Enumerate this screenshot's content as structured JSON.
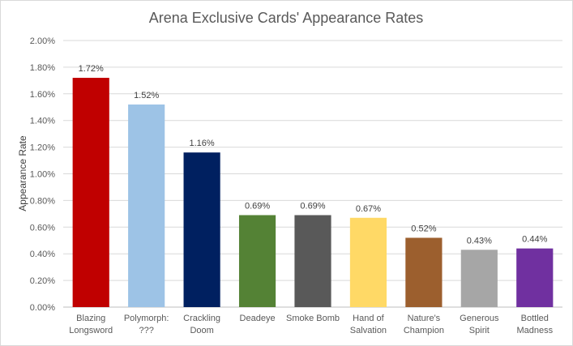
{
  "chart_data": {
    "type": "bar",
    "title": "Arena Exclusive Cards' Appearance Rates",
    "xlabel": "",
    "ylabel": "Appearance Rate",
    "ylim": [
      0,
      2.0
    ],
    "ytick_step": 0.2,
    "ytick_format": "percent_2dp",
    "grid": true,
    "legend": "none",
    "categories": [
      [
        "Blazing",
        "Longsword"
      ],
      [
        "Polymorph:",
        "???"
      ],
      [
        "Crackling",
        "Doom"
      ],
      [
        "Deadeye"
      ],
      [
        "Smoke Bomb"
      ],
      [
        "Hand of",
        "Salvation"
      ],
      [
        "Nature's",
        "Champion"
      ],
      [
        "Generous",
        "Spirit"
      ],
      [
        "Bottled",
        "Madness"
      ]
    ],
    "values": [
      1.72,
      1.52,
      1.16,
      0.69,
      0.69,
      0.67,
      0.52,
      0.43,
      0.44
    ],
    "data_labels": [
      "1.72%",
      "1.52%",
      "1.16%",
      "0.69%",
      "0.69%",
      "0.67%",
      "0.52%",
      "0.43%",
      "0.44%"
    ],
    "colors": [
      "#c00000",
      "#9dc3e6",
      "#002060",
      "#548235",
      "#595959",
      "#ffd966",
      "#9c5f2e",
      "#a6a6a6",
      "#7030a0"
    ],
    "gridline_color": "#d9d9d9"
  }
}
